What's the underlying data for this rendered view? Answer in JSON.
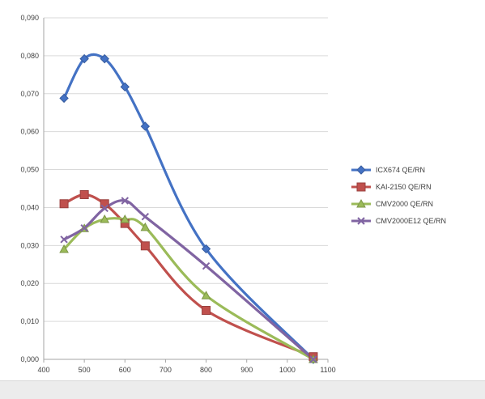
{
  "chart_data": {
    "type": "line",
    "title": "",
    "xlabel": "",
    "ylabel": "",
    "xlim": [
      400,
      1100
    ],
    "ylim": [
      0,
      0.09
    ],
    "x_ticks": [
      400,
      500,
      600,
      700,
      800,
      900,
      1000,
      1100
    ],
    "y_ticks": [
      0,
      0.01,
      0.02,
      0.03,
      0.04,
      0.05,
      0.06,
      0.07,
      0.08,
      0.09
    ],
    "x_tick_labels": [
      "400",
      "500",
      "600",
      "700",
      "800",
      "900",
      "1000",
      "1100"
    ],
    "y_tick_labels": [
      "0,000",
      "0,010",
      "0,020",
      "0,030",
      "0,040",
      "0,050",
      "0,060",
      "0,070",
      "0,080",
      "0,090"
    ],
    "grid": "horizontal",
    "legend_position": "right",
    "series": [
      {
        "name": "ICX674 QE/RN",
        "color": "#4472c4",
        "marker": "diamond",
        "x": [
          450,
          500,
          550,
          600,
          650,
          800,
          1064
        ],
        "y": [
          0.0688,
          0.0792,
          0.0792,
          0.0718,
          0.0614,
          0.0291,
          0.0
        ]
      },
      {
        "name": "KAI-2150 QE/RN",
        "color": "#c0504d",
        "marker": "square",
        "x": [
          450,
          500,
          550,
          600,
          650,
          800,
          1064
        ],
        "y": [
          0.041,
          0.0434,
          0.041,
          0.0358,
          0.0299,
          0.0129,
          0.0007
        ]
      },
      {
        "name": "CMV2000 QE/RN",
        "color": "#9bbb59",
        "marker": "triangle",
        "x": [
          450,
          500,
          550,
          600,
          650,
          800,
          1064
        ],
        "y": [
          0.029,
          0.0345,
          0.0369,
          0.0369,
          0.0348,
          0.0168,
          0.0
        ]
      },
      {
        "name": "CMV2000E12 QE/RN",
        "color": "#8064a2",
        "marker": "x",
        "x": [
          450,
          500,
          550,
          600,
          650,
          800,
          1064
        ],
        "y": [
          0.0316,
          0.0346,
          0.0398,
          0.0418,
          0.0376,
          0.0246,
          0.0
        ]
      }
    ]
  }
}
